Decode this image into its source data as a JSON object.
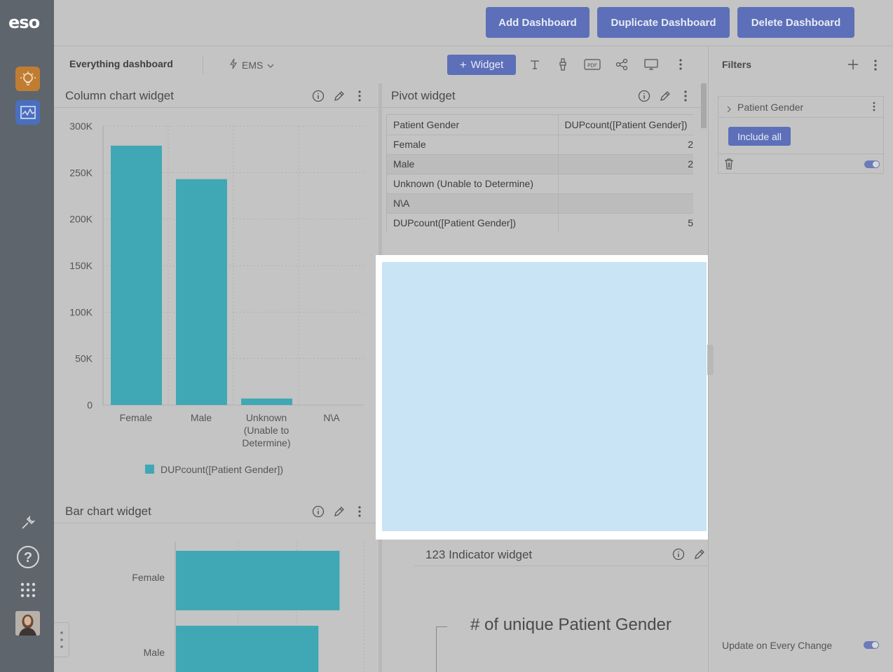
{
  "nav": {
    "logo": "eso"
  },
  "topbar": {
    "add_dashboard": "Add Dashboard",
    "duplicate_dashboard": "Duplicate Dashboard",
    "delete_dashboard": "Delete Dashboard"
  },
  "dashbar": {
    "title": "Everything dashboard",
    "datasource": "EMS",
    "widget_button": "Widget"
  },
  "column_widget": {
    "title": "Column chart widget"
  },
  "pivot_widget": {
    "title": "Pivot widget",
    "headers": [
      "Patient Gender",
      "DUPcount([Patient Gender])"
    ],
    "rows": [
      [
        "Female",
        "2"
      ],
      [
        "Male",
        "2"
      ],
      [
        "Unknown (Unable to Determine)",
        ""
      ],
      [
        "N\\A",
        ""
      ]
    ],
    "total": [
      "DUPcount([Patient Gender])",
      "5"
    ]
  },
  "bar_widget": {
    "title": "Bar chart widget"
  },
  "indicator_widget": {
    "title": "123 Indicator widget",
    "label": "# of unique Patient Gender"
  },
  "filters": {
    "title": "Filters",
    "field": "Patient Gender",
    "include_all": "Include all",
    "update_label": "Update on Every Change"
  },
  "colors": {
    "accent": "#5c6fb8",
    "series": "#40a8b4",
    "nav": "#5f656c"
  },
  "chart_data": [
    {
      "type": "bar",
      "title": "Column chart widget",
      "categories": [
        "Female",
        "Male",
        "Unknown (Unable to Determine)",
        "N\\A"
      ],
      "category_lines": [
        [
          "Female"
        ],
        [
          "Male"
        ],
        [
          "Unknown",
          "(Unable to",
          "Determine)"
        ],
        [
          "N\\A"
        ]
      ],
      "series": [
        {
          "name": "DUPcount([Patient Gender])",
          "values": [
            279000,
            243000,
            7000,
            0
          ]
        }
      ],
      "ylim": [
        0,
        300000
      ],
      "yticks": [
        0,
        50000,
        100000,
        150000,
        200000,
        250000,
        300000
      ],
      "ytick_labels": [
        "0",
        "50K",
        "100K",
        "150K",
        "200K",
        "250K",
        "300K"
      ],
      "grid": true,
      "legend": "bottom"
    },
    {
      "type": "bar",
      "orientation": "horizontal",
      "title": "Bar chart widget",
      "categories": [
        "Female",
        "Male"
      ],
      "series": [
        {
          "values": [
            279000,
            243000
          ]
        }
      ],
      "grid": true
    }
  ]
}
